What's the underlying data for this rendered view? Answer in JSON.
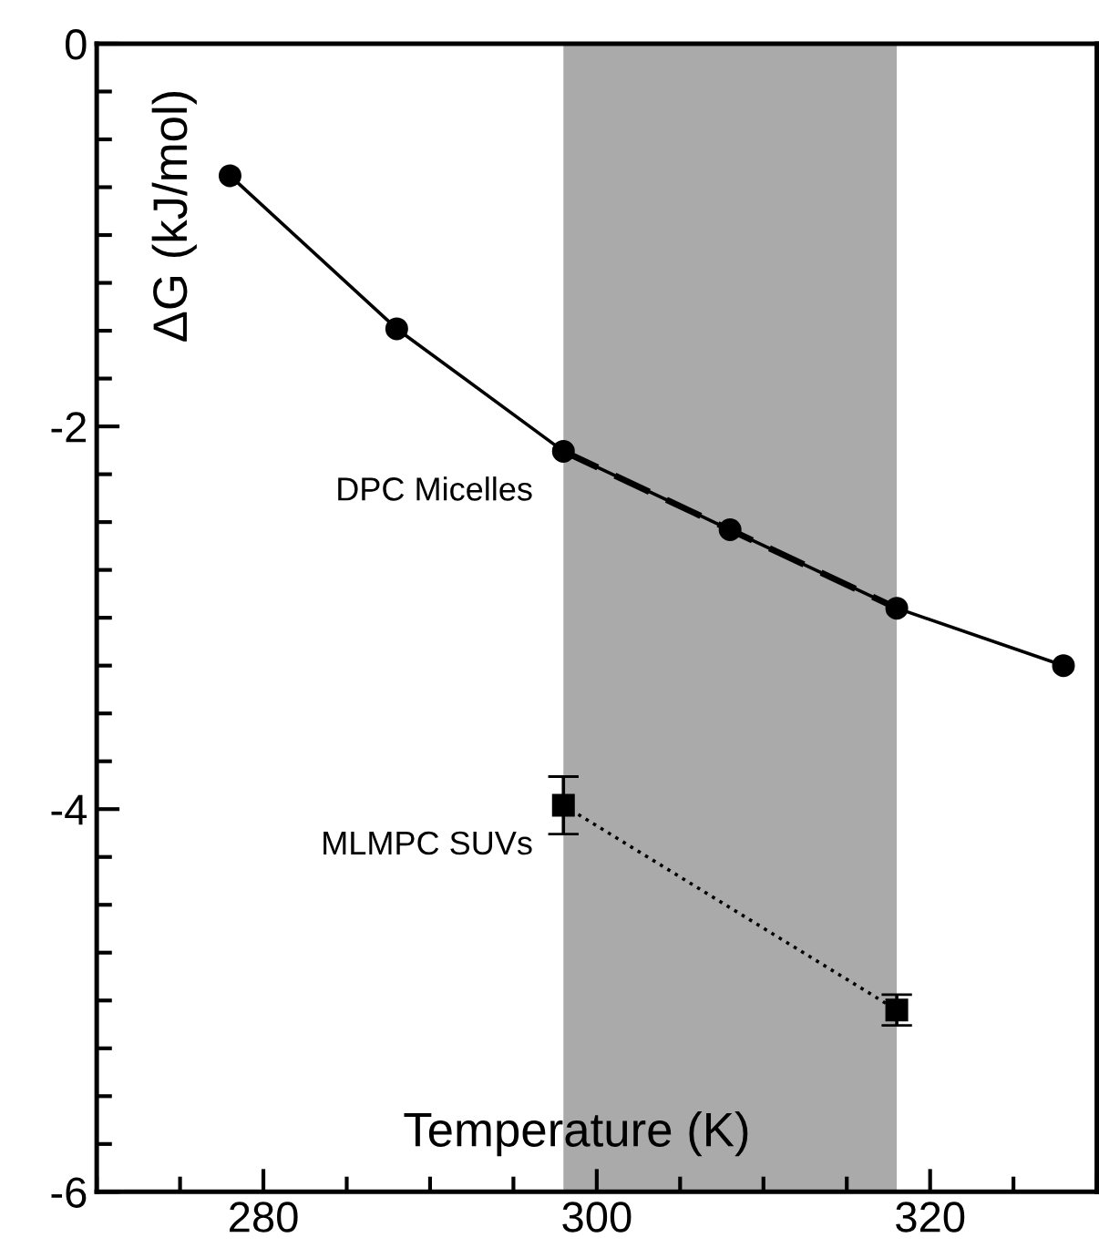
{
  "chart_data": {
    "type": "line",
    "xlabel": "Temperature (K)",
    "ylabel": "ΔG (kJ/mol)",
    "series": [
      {
        "color": "#000000",
        "marker": "circle",
        "line_style": "solid",
        "x": [
          278,
          288,
          298,
          308,
          318,
          328
        ],
        "values": [
          -0.69,
          -1.49,
          -2.13,
          -2.54,
          -2.95,
          -3.25
        ]
      },
      {
        "color": "#000000",
        "marker": "none",
        "line_style": "dashed",
        "x": [
          298,
          318
        ],
        "values": [
          -2.13,
          -2.95
        ]
      },
      {
        "color": "#000000",
        "marker": "square",
        "line_style": "dotted",
        "x": [
          298,
          318
        ],
        "values": [
          -3.98,
          -5.05
        ],
        "errors": [
          0.15,
          0.08
        ]
      }
    ],
    "annotations": [
      {
        "text": "DPC Micelles",
        "x": 298,
        "y": -2.13
      },
      {
        "text": "MLMPC SUVs",
        "x": 298,
        "y": -3.98
      }
    ],
    "bands": [
      {
        "axis": "x",
        "from": 298,
        "to": 318,
        "color": "#aaaaaa"
      }
    ],
    "xlim": [
      270,
      330
    ],
    "xticks": [
      280,
      300,
      320
    ],
    "ylim": [
      -6,
      0
    ],
    "yticks": [
      -6,
      -4,
      -2,
      0
    ],
    "grid": false,
    "legend": false
  }
}
